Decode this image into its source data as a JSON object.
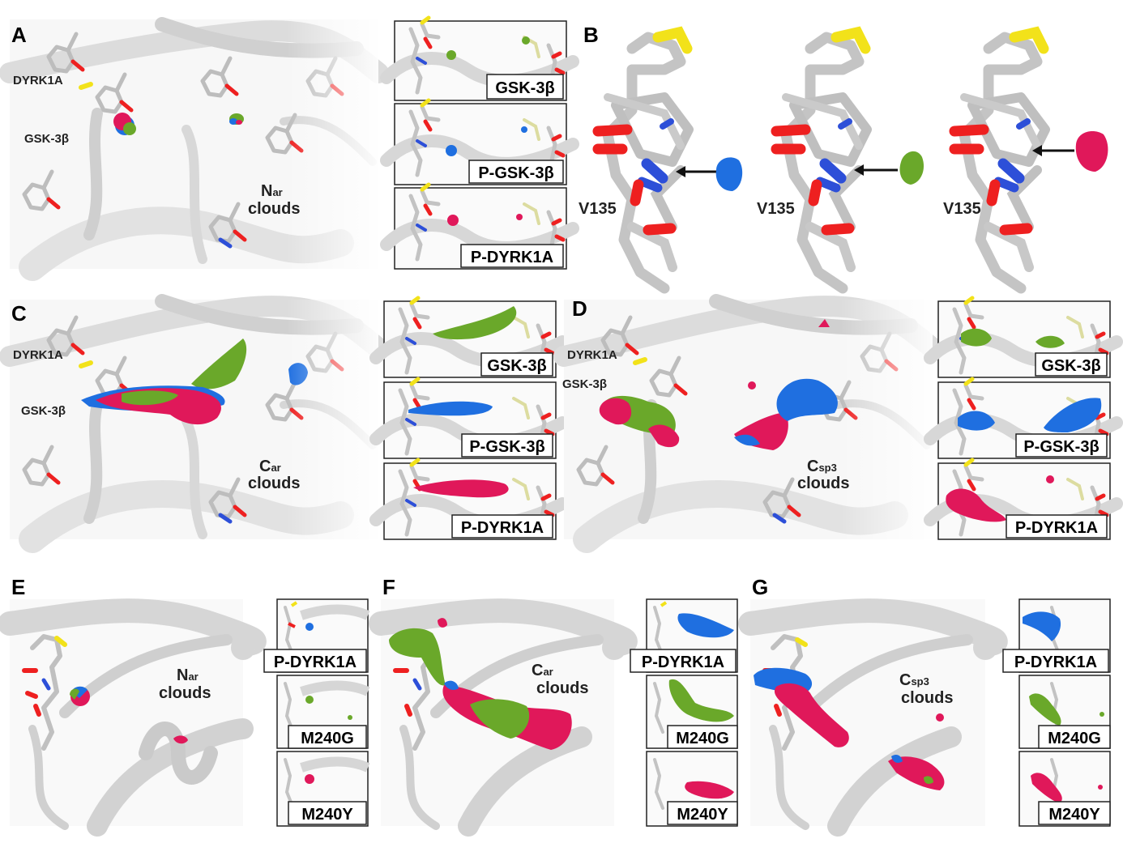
{
  "colors": {
    "gsk3b": "#6aa82a",
    "p_gsk3b": "#1f6fe0",
    "p_dyrk1a": "#e0185a",
    "m240g": "#6aa82a",
    "m240y": "#e0185a",
    "protein": "#c9c9c9",
    "oxygen": "#ee2020",
    "nitrogen": "#2d4fd8",
    "sulfur": "#f2e21a"
  },
  "panels": {
    "A": {
      "letter": "A",
      "labels": [
        "DYRK1A",
        "GSK-3β"
      ],
      "cloud": [
        "N",
        "ar",
        "clouds"
      ],
      "insets": [
        "GSK-3β",
        "P-GSK-3β",
        "P-DYRK1A"
      ]
    },
    "B": {
      "letter": "B",
      "residue": "V135"
    },
    "C": {
      "letter": "C",
      "labels": [
        "DYRK1A",
        "GSK-3β"
      ],
      "cloud": [
        "C",
        "ar",
        "clouds"
      ],
      "insets": [
        "GSK-3β",
        "P-GSK-3β",
        "P-DYRK1A"
      ]
    },
    "D": {
      "letter": "D",
      "labels": [
        "DYRK1A",
        "GSK-3β"
      ],
      "cloud": [
        "C",
        "sp3",
        "clouds"
      ],
      "insets": [
        "GSK-3β",
        "P-GSK-3β",
        "P-DYRK1A"
      ]
    },
    "E": {
      "letter": "E",
      "cloud": [
        "N",
        "ar",
        "clouds"
      ],
      "insets": [
        "P-DYRK1A",
        "M240G",
        "M240Y"
      ]
    },
    "F": {
      "letter": "F",
      "cloud": [
        "C",
        "ar",
        "clouds"
      ],
      "insets": [
        "P-DYRK1A",
        "M240G",
        "M240Y"
      ]
    },
    "G": {
      "letter": "G",
      "cloud": [
        "C",
        "sp3",
        "clouds"
      ],
      "insets": [
        "P-DYRK1A",
        "M240G",
        "M240Y"
      ]
    }
  }
}
